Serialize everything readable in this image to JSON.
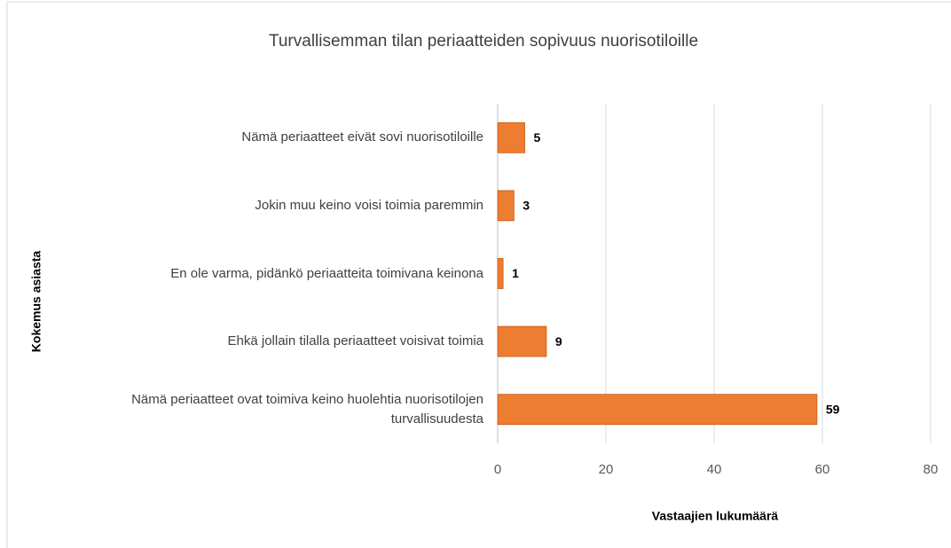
{
  "chart_data": {
    "type": "bar",
    "orientation": "horizontal",
    "title": "Turvallisemman tilan periaatteiden sopivuus nuorisotiloille",
    "x_label": "Vastaajien lukumäärä",
    "y_label": "Kokemus asiasta",
    "categories": [
      "Nämä periaatteet eivät sovi nuorisotiloille",
      "Jokin muu keino voisi toimia paremmin",
      "En ole varma, pidänkö periaatteita toimivana keinona",
      "Ehkä jollain tilalla periaatteet voisivat toimia",
      "Nämä periaatteet ovat toimiva keino huolehtia nuorisotilojen turvallisuudesta"
    ],
    "values": [
      5,
      3,
      1,
      9,
      59
    ],
    "color": "#ed7d31",
    "xlim": [
      0,
      80
    ],
    "xticks": [
      0,
      20,
      40,
      60,
      80
    ],
    "grid": true
  }
}
